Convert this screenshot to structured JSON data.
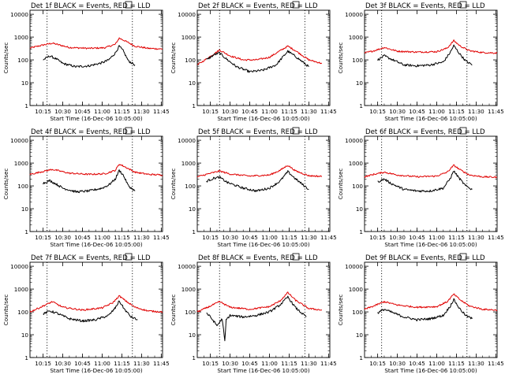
{
  "colors": {
    "events": "#000000",
    "lld": "#e00000",
    "axis": "#000000",
    "background": "#ffffff"
  },
  "panel_common": {
    "ylabel": "Counts/sec",
    "xlabel": "Start Time (16-Dec-06 10:05:00)",
    "x_ticks": [
      "10:15",
      "10:30",
      "10:45",
      "11:00",
      "11:15",
      "11:30",
      "11:45"
    ],
    "y_ticks": [
      "1",
      "10",
      "100",
      "1000",
      "10000"
    ]
  },
  "chart_data": [
    {
      "type": "line",
      "title": "Det 1f BLACK = Events, RED = LLD",
      "xlim": [
        "10:05",
        "11:46"
      ],
      "ylim": [
        1,
        15000
      ],
      "yscale": "log",
      "vlines": [
        "10:18",
        "11:23"
      ],
      "series": [
        {
          "name": "LLD",
          "color": "#e00000",
          "x": [
            "10:05",
            "10:15",
            "10:22",
            "10:35",
            "10:50",
            "11:02",
            "11:10",
            "11:13",
            "11:17",
            "11:25",
            "11:35",
            "11:46"
          ],
          "values": [
            330,
            450,
            540,
            350,
            320,
            340,
            480,
            900,
            700,
            400,
            320,
            300
          ]
        },
        {
          "name": "Events",
          "color": "#000000",
          "x": [
            "10:15",
            "10:20",
            "10:25",
            "10:30",
            "10:40",
            "10:50",
            "11:00",
            "11:05",
            "11:10",
            "11:13",
            "11:16",
            "11:20",
            "11:25"
          ],
          "values": [
            100,
            150,
            110,
            70,
            50,
            55,
            75,
            100,
            200,
            400,
            250,
            90,
            60
          ]
        }
      ]
    },
    {
      "type": "line",
      "title": "Det 2f BLACK = Events, RED = LLD",
      "xlim": [
        "10:05",
        "11:46"
      ],
      "ylim": [
        1,
        15000
      ],
      "yscale": "log",
      "vlines": [
        "10:22",
        "11:27"
      ],
      "series": [
        {
          "name": "LLD",
          "color": "#e00000",
          "x": [
            "10:05",
            "10:12",
            "10:22",
            "10:30",
            "10:40",
            "10:50",
            "11:00",
            "11:08",
            "11:14",
            "11:20",
            "11:30",
            "11:40"
          ],
          "values": [
            60,
            110,
            270,
            150,
            100,
            100,
            130,
            250,
            400,
            250,
            100,
            70
          ]
        },
        {
          "name": "Events",
          "color": "#000000",
          "x": [
            "10:12",
            "10:18",
            "10:22",
            "10:28",
            "10:35",
            "10:45",
            "10:55",
            "11:05",
            "11:10",
            "11:14",
            "11:20",
            "11:30"
          ],
          "values": [
            100,
            170,
            200,
            100,
            50,
            30,
            35,
            60,
            130,
            240,
            140,
            50
          ]
        }
      ]
    },
    {
      "type": "line",
      "title": "Det 3f BLACK = Events, RED = LLD",
      "xlim": [
        "10:05",
        "11:46"
      ],
      "ylim": [
        1,
        15000
      ],
      "yscale": "log",
      "vlines": [
        "10:18",
        "11:23"
      ],
      "series": [
        {
          "name": "LLD",
          "color": "#e00000",
          "x": [
            "10:05",
            "10:12",
            "10:20",
            "10:30",
            "10:45",
            "11:00",
            "11:08",
            "11:13",
            "11:18",
            "11:25",
            "11:35",
            "11:46"
          ],
          "values": [
            200,
            250,
            350,
            240,
            220,
            230,
            330,
            700,
            400,
            250,
            210,
            200
          ]
        },
        {
          "name": "Events",
          "color": "#000000",
          "x": [
            "10:15",
            "10:20",
            "10:25",
            "10:35",
            "10:45",
            "10:55",
            "11:05",
            "11:10",
            "11:13",
            "11:17",
            "11:22",
            "11:27"
          ],
          "values": [
            100,
            150,
            110,
            60,
            55,
            60,
            80,
            200,
            420,
            200,
            90,
            60
          ]
        }
      ]
    },
    {
      "type": "line",
      "title": "Det 4f BLACK = Events, RED = LLD",
      "xlim": [
        "10:05",
        "11:46"
      ],
      "ylim": [
        1,
        15000
      ],
      "yscale": "log",
      "vlines": [
        "10:18",
        "11:23"
      ],
      "series": [
        {
          "name": "LLD",
          "color": "#e00000",
          "x": [
            "10:05",
            "10:15",
            "10:22",
            "10:35",
            "10:50",
            "11:02",
            "11:10",
            "11:13",
            "11:17",
            "11:25",
            "11:35",
            "11:46"
          ],
          "values": [
            320,
            430,
            530,
            360,
            320,
            340,
            480,
            900,
            700,
            400,
            320,
            300
          ]
        },
        {
          "name": "Events",
          "color": "#000000",
          "x": [
            "10:15",
            "10:20",
            "10:25",
            "10:30",
            "10:40",
            "10:50",
            "11:00",
            "11:05",
            "11:10",
            "11:13",
            "11:16",
            "11:20",
            "11:25"
          ],
          "values": [
            130,
            170,
            120,
            80,
            55,
            60,
            80,
            110,
            200,
            480,
            300,
            100,
            60
          ]
        }
      ]
    },
    {
      "type": "line",
      "title": "Det 5f BLACK = Events, RED = LLD",
      "xlim": [
        "10:05",
        "11:46"
      ],
      "ylim": [
        1,
        15000
      ],
      "yscale": "log",
      "vlines": [
        "10:22",
        "11:27"
      ],
      "series": [
        {
          "name": "LLD",
          "color": "#e00000",
          "x": [
            "10:05",
            "10:12",
            "10:22",
            "10:30",
            "10:45",
            "11:00",
            "11:08",
            "11:14",
            "11:20",
            "11:30",
            "11:40"
          ],
          "values": [
            250,
            320,
            450,
            330,
            270,
            300,
            480,
            800,
            450,
            280,
            260
          ]
        },
        {
          "name": "Events",
          "color": "#000000",
          "x": [
            "10:12",
            "10:18",
            "10:22",
            "10:28",
            "10:40",
            "10:50",
            "11:00",
            "11:08",
            "11:14",
            "11:20",
            "11:30"
          ],
          "values": [
            160,
            220,
            240,
            140,
            80,
            60,
            80,
            160,
            420,
            200,
            70
          ]
        }
      ]
    },
    {
      "type": "line",
      "title": "Det 6f BLACK = Events, RED = LLD",
      "xlim": [
        "10:05",
        "11:46"
      ],
      "ylim": [
        1,
        15000
      ],
      "yscale": "log",
      "vlines": [
        "10:18",
        "11:23"
      ],
      "series": [
        {
          "name": "LLD",
          "color": "#e00000",
          "x": [
            "10:05",
            "10:12",
            "10:20",
            "10:30",
            "10:45",
            "11:00",
            "11:08",
            "11:13",
            "11:18",
            "11:25",
            "11:35",
            "11:46"
          ],
          "values": [
            250,
            320,
            400,
            300,
            250,
            270,
            400,
            800,
            500,
            300,
            250,
            240
          ]
        },
        {
          "name": "Events",
          "color": "#000000",
          "x": [
            "10:15",
            "10:20",
            "10:25",
            "10:35",
            "10:45",
            "10:55",
            "11:05",
            "11:10",
            "11:13",
            "11:17",
            "11:22",
            "11:27"
          ],
          "values": [
            150,
            200,
            130,
            70,
            60,
            60,
            80,
            200,
            450,
            220,
            100,
            70
          ]
        }
      ]
    },
    {
      "type": "line",
      "title": "Det 7f BLACK = Events, RED = LLD",
      "xlim": [
        "10:05",
        "11:46"
      ],
      "ylim": [
        1,
        15000
      ],
      "yscale": "log",
      "vlines": [
        "10:18",
        "11:23"
      ],
      "series": [
        {
          "name": "LLD",
          "color": "#e00000",
          "x": [
            "10:05",
            "10:12",
            "10:22",
            "10:30",
            "10:45",
            "11:00",
            "11:08",
            "11:13",
            "11:18",
            "11:25",
            "11:35",
            "11:46"
          ],
          "values": [
            100,
            150,
            280,
            160,
            120,
            150,
            250,
            500,
            300,
            160,
            110,
            100
          ]
        },
        {
          "name": "Events",
          "color": "#000000",
          "x": [
            "10:15",
            "10:20",
            "10:25",
            "10:35",
            "10:45",
            "10:55",
            "11:05",
            "11:10",
            "11:13",
            "11:17",
            "11:22",
            "11:27"
          ],
          "values": [
            80,
            110,
            90,
            50,
            40,
            45,
            70,
            150,
            300,
            130,
            60,
            45
          ]
        }
      ]
    },
    {
      "type": "line",
      "title": "Det 8f BLACK = Events, RED = LLD",
      "xlim": [
        "10:05",
        "11:46"
      ],
      "ylim": [
        1,
        15000
      ],
      "yscale": "log",
      "vlines": [
        "10:22",
        "11:27"
      ],
      "series": [
        {
          "name": "LLD",
          "color": "#e00000",
          "x": [
            "10:05",
            "10:12",
            "10:22",
            "10:30",
            "10:45",
            "11:00",
            "11:08",
            "11:14",
            "11:20",
            "11:30",
            "11:40"
          ],
          "values": [
            100,
            150,
            280,
            160,
            130,
            170,
            300,
            700,
            320,
            140,
            120
          ]
        },
        {
          "name": "Events",
          "color": "#000000",
          "x": [
            "10:12",
            "10:15",
            "10:20",
            "10:24",
            "10:26",
            "10:27",
            "10:30",
            "10:40",
            "10:50",
            "11:00",
            "11:08",
            "11:14",
            "11:20",
            "11:28"
          ],
          "values": [
            90,
            60,
            25,
            50,
            5,
            45,
            70,
            60,
            70,
            100,
            200,
            450,
            150,
            60
          ]
        }
      ]
    },
    {
      "type": "line",
      "title": "Det 9f BLACK = Events, RED = LLD",
      "xlim": [
        "10:05",
        "11:46"
      ],
      "ylim": [
        1,
        15000
      ],
      "yscale": "log",
      "vlines": [
        "10:18",
        "11:23"
      ],
      "series": [
        {
          "name": "LLD",
          "color": "#e00000",
          "x": [
            "10:05",
            "10:12",
            "10:20",
            "10:30",
            "10:45",
            "11:00",
            "11:08",
            "11:13",
            "11:18",
            "11:25",
            "11:35",
            "11:46"
          ],
          "values": [
            130,
            180,
            280,
            200,
            160,
            170,
            280,
            600,
            330,
            180,
            130,
            120
          ]
        },
        {
          "name": "Events",
          "color": "#000000",
          "x": [
            "10:15",
            "10:20",
            "10:25",
            "10:35",
            "10:45",
            "10:55",
            "11:05",
            "11:10",
            "11:13",
            "11:17",
            "11:22",
            "11:27"
          ],
          "values": [
            90,
            130,
            100,
            60,
            45,
            50,
            70,
            170,
            350,
            150,
            70,
            50
          ]
        }
      ]
    }
  ]
}
